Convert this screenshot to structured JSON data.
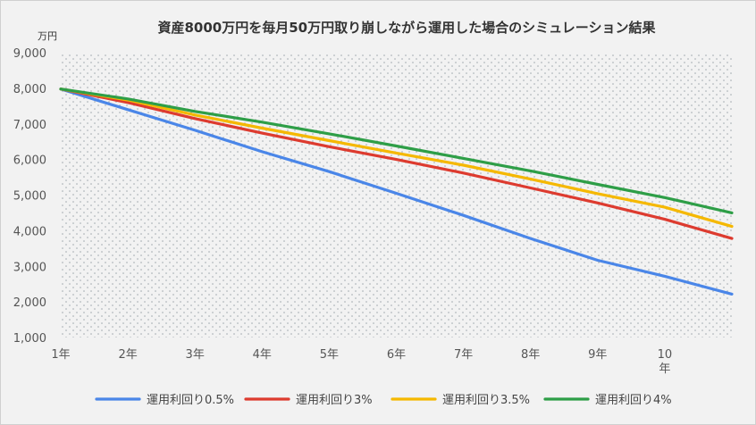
{
  "chart_data": {
    "type": "line",
    "title": "資産8000万円を毎月50万円取り崩しながら運用した場合のシミュレーション結果",
    "yunit": "万円",
    "ylim": [
      1000,
      9000
    ],
    "yticks": [
      1000,
      2000,
      3000,
      4000,
      5000,
      6000,
      7000,
      8000,
      9000
    ],
    "ytick_labels": [
      "1,000",
      "2,000",
      "3,000",
      "4,000",
      "5,000",
      "6,000",
      "7,000",
      "8,000",
      "9,000"
    ],
    "xticks": [
      1,
      2,
      3,
      4,
      5,
      6,
      7,
      8,
      9,
      10
    ],
    "xtick_labels": [
      "1年",
      "2年",
      "3年",
      "4年",
      "5年",
      "6年",
      "7年",
      "8年",
      "9年",
      "10"
    ],
    "x_unit_suffix": "年",
    "xlim": [
      1,
      11
    ],
    "series": [
      {
        "name": "運用利回り0.5%",
        "color": "#4a86e8",
        "x": [
          1,
          2,
          3,
          4,
          5,
          6,
          7,
          8,
          9,
          10,
          11
        ],
        "values": [
          7980,
          7400,
          6820,
          6220,
          5660,
          5050,
          4430,
          3780,
          3170,
          2720,
          2220
        ]
      },
      {
        "name": "運用利回り3%",
        "color": "#dd3b2f",
        "x": [
          1,
          2,
          3,
          4,
          5,
          6,
          7,
          8,
          9,
          10,
          11
        ],
        "values": [
          7980,
          7600,
          7150,
          6740,
          6360,
          6000,
          5620,
          5200,
          4780,
          4320,
          3780
        ]
      },
      {
        "name": "運用利回り3.5%",
        "color": "#f5b800",
        "x": [
          1,
          2,
          3,
          4,
          5,
          6,
          7,
          8,
          9,
          10,
          11
        ],
        "values": [
          7980,
          7670,
          7250,
          6880,
          6530,
          6180,
          5840,
          5450,
          5040,
          4660,
          4120
        ]
      },
      {
        "name": "運用利回り4%",
        "color": "#2e9e47",
        "x": [
          1,
          2,
          3,
          4,
          5,
          6,
          7,
          8,
          9,
          10,
          11
        ],
        "values": [
          7980,
          7700,
          7350,
          7050,
          6720,
          6380,
          6030,
          5680,
          5300,
          4930,
          4500
        ]
      }
    ]
  }
}
